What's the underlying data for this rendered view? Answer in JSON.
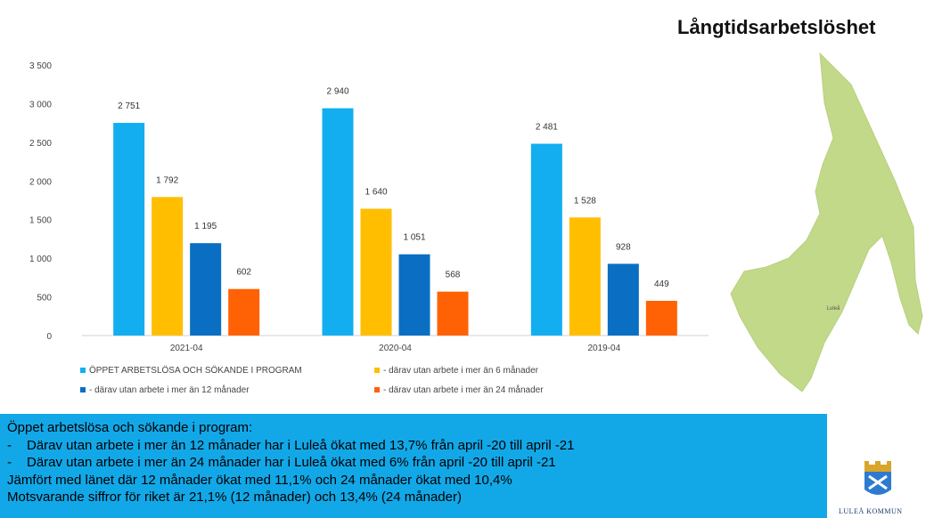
{
  "title": "Långtidsarbetslöshet",
  "map_label": "Luleå",
  "chart_data": {
    "type": "bar",
    "categories": [
      "2021-04",
      "2020-04",
      "2019-04"
    ],
    "series": [
      {
        "name": "ÖPPET ARBETSLÖSA OCH SÖKANDE I PROGRAM",
        "color": "#12aef0",
        "values": [
          2751,
          2940,
          2481
        ],
        "labels": [
          "2 751",
          "2 940",
          "2 481"
        ]
      },
      {
        "name": "- därav utan arbete i mer än 6 månader",
        "color": "#ffbe00",
        "values": [
          1792,
          1640,
          1528
        ],
        "labels": [
          "1 792",
          "1 640",
          "1 528"
        ]
      },
      {
        "name": "- därav utan arbete i mer än 12 månader",
        "color": "#0a6fc2",
        "values": [
          1195,
          1051,
          928
        ],
        "labels": [
          "1 195",
          "1 051",
          "928"
        ]
      },
      {
        "name": "- därav utan arbete i mer än 24 månader",
        "color": "#ff6205",
        "values": [
          602,
          568,
          449
        ],
        "labels": [
          "602",
          "568",
          "449"
        ]
      }
    ],
    "y_ticks": [
      0,
      500,
      1000,
      1500,
      2000,
      2500,
      3000,
      3500
    ],
    "y_tick_labels": [
      "0",
      "500",
      "1 000",
      "1 500",
      "2 000",
      "2 500",
      "3 000",
      "3 500"
    ],
    "ylim": [
      0,
      3500
    ],
    "grid": false,
    "legend_position": "bottom"
  },
  "info": {
    "heading": "Öppet arbetslösa och sökande i program:",
    "bullet_mark": "-",
    "bullets": [
      "Därav utan arbete i mer än 12 månader har i Luleå ökat med 13,7% från april -20 till april -21",
      "Därav utan arbete i mer än 24 månader har i Luleå ökat med 6% från april -20 till april -21"
    ],
    "line3": "Jämfört med länet där 12 månader ökat med 11,1% och 24 månader ökat med 10,4%",
    "line4": "Motsvarande siffror för riket är 21,1% (12 månader) och 13,4% (24 månader)"
  },
  "logo_text": "LULEÅ KOMMUN"
}
